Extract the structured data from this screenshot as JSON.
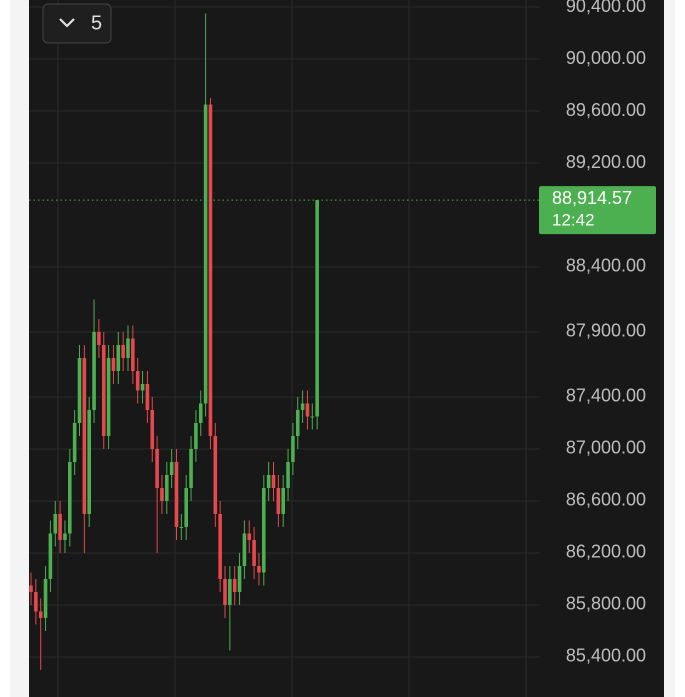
{
  "chart_data": {
    "type": "candlestick",
    "interval": "5",
    "price_label": "88,914.57",
    "time_label": "12:42",
    "up_color": "#4caf50",
    "down_color": "#e5484d",
    "grid": true,
    "ylim": [
      85092,
      90454
    ],
    "yticks": [
      {
        "value": 85400,
        "label": "85,400.00"
      },
      {
        "value": 85800,
        "label": "85,800.00"
      },
      {
        "value": 86200,
        "label": "86,200.00"
      },
      {
        "value": 86600,
        "label": "86,600.00"
      },
      {
        "value": 87000,
        "label": "87,000.00"
      },
      {
        "value": 87400,
        "label": "87,400.00"
      },
      {
        "value": 87900,
        "label": "87,900.00"
      },
      {
        "value": 88400,
        "label": "88,400.00"
      },
      {
        "value": 89200,
        "label": "89,200.00"
      },
      {
        "value": 89600,
        "label": "89,600.00"
      },
      {
        "value": 90000,
        "label": "90,000.00"
      },
      {
        "value": 90400,
        "label": "90,400.00"
      }
    ],
    "open": [
      85950,
      85900,
      85750,
      85700,
      86000,
      86350,
      86500,
      86300,
      86350,
      86900,
      87200,
      87700,
      86500,
      87300,
      87900,
      87800,
      87100,
      87700,
      87600,
      87800,
      87700,
      87850,
      87600,
      87450,
      87500,
      87300,
      87000,
      86700,
      86600,
      86800,
      86900,
      86400,
      86400,
      86700,
      87000,
      87200,
      87350,
      89650,
      87100,
      86500,
      86000,
      85800,
      86000,
      85900,
      86100,
      86350,
      86300,
      86100,
      86050,
      86700,
      86800,
      86700,
      86500,
      86700,
      86900,
      87100,
      87300,
      87350,
      87250,
      87250
    ],
    "high": [
      86050,
      86000,
      85850,
      86100,
      86450,
      86600,
      86600,
      86450,
      87000,
      87300,
      87800,
      87800,
      87400,
      88150,
      88000,
      87900,
      87800,
      87800,
      87900,
      87900,
      87950,
      87950,
      87700,
      87600,
      87600,
      87400,
      87100,
      86800,
      86900,
      87000,
      87000,
      86500,
      86800,
      87100,
      87300,
      87450,
      90350,
      89700,
      87200,
      86600,
      86100,
      86100,
      86100,
      86200,
      86450,
      86450,
      86400,
      86200,
      86800,
      86900,
      86900,
      86800,
      86800,
      87000,
      87200,
      87400,
      87450,
      87450,
      87350,
      88914.57
    ],
    "low": [
      85800,
      85650,
      85300,
      85600,
      85900,
      86250,
      86200,
      86200,
      86250,
      86800,
      87100,
      86200,
      86400,
      87200,
      87700,
      87000,
      87000,
      87500,
      87500,
      87600,
      87600,
      87500,
      87350,
      87350,
      87200,
      86900,
      86200,
      86500,
      86500,
      86700,
      86300,
      86300,
      86300,
      86600,
      86900,
      87100,
      87250,
      87000,
      86400,
      85900,
      85700,
      85450,
      85800,
      85800,
      86000,
      86200,
      86000,
      85950,
      85950,
      86600,
      86600,
      86400,
      86400,
      86600,
      86800,
      87000,
      87200,
      87150,
      87150,
      87150
    ],
    "close": [
      85900,
      85750,
      85700,
      86000,
      86350,
      86500,
      86300,
      86350,
      86900,
      87200,
      87700,
      86500,
      87300,
      87900,
      87800,
      87100,
      87700,
      87600,
      87800,
      87700,
      87850,
      87600,
      87450,
      87500,
      87300,
      87000,
      86700,
      86600,
      86800,
      86900,
      86400,
      86400,
      86700,
      87000,
      87200,
      87350,
      89650,
      87100,
      86500,
      86000,
      85800,
      86000,
      85900,
      86100,
      86350,
      86300,
      86100,
      86050,
      86700,
      86800,
      86700,
      86500,
      86700,
      86900,
      87100,
      87300,
      87350,
      87250,
      87250,
      88914.57
    ]
  }
}
